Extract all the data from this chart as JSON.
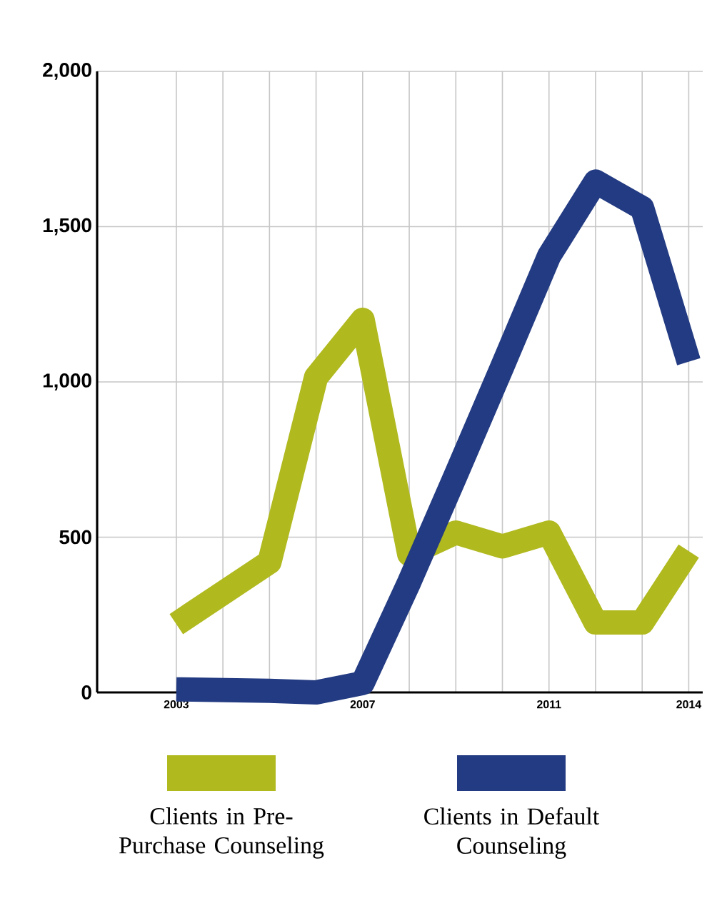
{
  "chart_data": {
    "type": "line",
    "series": [
      {
        "name": "Clients in Pre-Purchase Counseling",
        "color": "#b0b91e",
        "x": [
          2003,
          2005,
          2006,
          2007,
          2008,
          2009,
          2010,
          2011,
          2012,
          2013,
          2014
        ],
        "values": [
          220,
          420,
          1015,
          1200,
          445,
          515,
          470,
          515,
          225,
          225,
          455
        ]
      },
      {
        "name": "Clients in Default Counseling",
        "color": "#233b82",
        "x": [
          2003,
          2005,
          2006,
          2007,
          2008,
          2009,
          2010,
          2011,
          2012,
          2013,
          2014
        ],
        "values": [
          10,
          5,
          0,
          30,
          355,
          700,
          1050,
          1405,
          1645,
          1560,
          1065
        ]
      }
    ],
    "xlim": [
      2001.3,
      2014.3
    ],
    "xticks": [
      2003,
      {
        "value": 2004,
        "label": null
      },
      {
        "value": 2005,
        "label": null
      },
      {
        "value": 2006,
        "label": null
      },
      2007,
      {
        "value": 2008,
        "label": null
      },
      {
        "value": 2009,
        "label": null
      },
      {
        "value": 2010,
        "label": null
      },
      2011,
      {
        "value": 2012,
        "label": null
      },
      {
        "value": 2013,
        "label": null
      },
      2014
    ],
    "ylim": [
      0,
      2000
    ],
    "yticks": [
      0,
      500,
      {
        "value": 1000,
        "label": "1,000"
      },
      {
        "value": 1500,
        "label": "1,500"
      },
      {
        "value": 2000,
        "label": "2,000"
      }
    ],
    "grid": true,
    "legend": "bottom",
    "marker": "none",
    "line_style": "solid"
  }
}
